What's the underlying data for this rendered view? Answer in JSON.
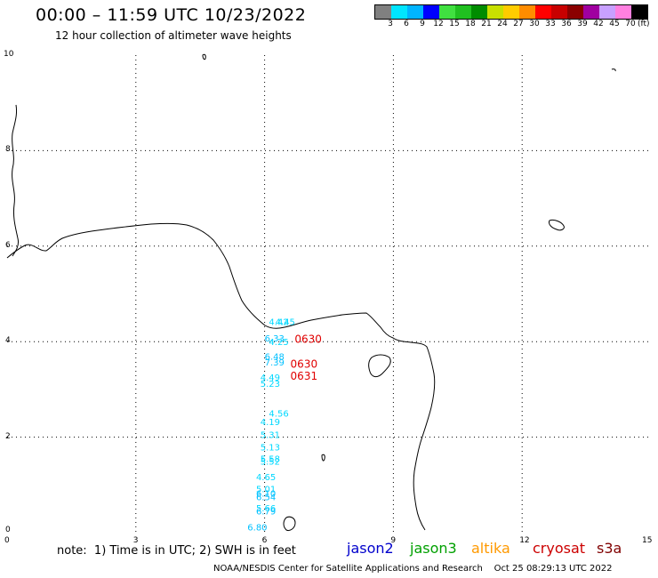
{
  "title": "00:00 – 11:59 UTC 10/23/2022",
  "subtitle": "12 hour collection of altimeter wave heights",
  "colorbar": {
    "swatches": [
      "#808080",
      "#00e5ff",
      "#00b4ff",
      "#0000ff",
      "#40e040",
      "#20c020",
      "#008c00",
      "#c8e000",
      "#ffcc00",
      "#ff8c00",
      "#ff0000",
      "#c80000",
      "#8b0000",
      "#a000a0",
      "#c8a0ff",
      "#ff80e0",
      "#000000"
    ],
    "labels": [
      "3",
      "6",
      "9",
      "12",
      "15",
      "18",
      "21",
      "24",
      "27",
      "30",
      "33",
      "36",
      "39",
      "42",
      "45",
      "70"
    ],
    "unit": "(ft)"
  },
  "axes": {
    "x_ticks": [
      "0",
      "3",
      "6",
      "9",
      "12",
      "15"
    ],
    "y_ticks": [
      "0",
      "2",
      "4",
      "6",
      "8",
      "10"
    ]
  },
  "track_labels": [
    {
      "text": "4.42",
      "color": "#00d8ff",
      "x": 6.1,
      "y": 4.35
    },
    {
      "text": "4.45",
      "color": "#00d8ff",
      "x": 6.25,
      "y": 4.35
    },
    {
      "text": "6.33",
      "color": "#00c0ff",
      "x": 6.0,
      "y": 4.0
    },
    {
      "text": "4.25",
      "color": "#00d8ff",
      "x": 6.1,
      "y": 3.93
    },
    {
      "text": "6.48",
      "color": "#00c0ff",
      "x": 6.0,
      "y": 3.62
    },
    {
      "text": "7.39",
      "color": "#00c0ff",
      "x": 6.0,
      "y": 3.5
    },
    {
      "text": "4.49",
      "color": "#00d8ff",
      "x": 5.9,
      "y": 3.18
    },
    {
      "text": "5.23",
      "color": "#00d8ff",
      "x": 5.9,
      "y": 3.05
    },
    {
      "text": "4.56",
      "color": "#00d8ff",
      "x": 6.1,
      "y": 2.43
    },
    {
      "text": "4.19",
      "color": "#00d8ff",
      "x": 5.9,
      "y": 2.25
    },
    {
      "text": "5.31",
      "color": "#00d8ff",
      "x": 5.9,
      "y": 1.98
    },
    {
      "text": "5.13",
      "color": "#00d8ff",
      "x": 5.9,
      "y": 1.72
    },
    {
      "text": "5.58",
      "color": "#00d8ff",
      "x": 5.9,
      "y": 1.48
    },
    {
      "text": "5.52",
      "color": "#00d8ff",
      "x": 5.9,
      "y": 1.42
    },
    {
      "text": "4.65",
      "color": "#00d8ff",
      "x": 5.8,
      "y": 1.1
    },
    {
      "text": "5.01",
      "color": "#00d8ff",
      "x": 5.8,
      "y": 0.85
    },
    {
      "text": "6.10",
      "color": "#00c0ff",
      "x": 5.8,
      "y": 0.75
    },
    {
      "text": "6.54",
      "color": "#00c0ff",
      "x": 5.8,
      "y": 0.68
    },
    {
      "text": "5.66",
      "color": "#00d8ff",
      "x": 5.8,
      "y": 0.45
    },
    {
      "text": "6.79",
      "color": "#00c0ff",
      "x": 5.8,
      "y": 0.38
    },
    {
      "text": "6.80",
      "color": "#00c0ff",
      "x": 5.6,
      "y": 0.05
    }
  ],
  "time_labels": [
    {
      "text": "0630",
      "color": "#e00000",
      "x": 6.7,
      "y": 3.98
    },
    {
      "text": "0630",
      "color": "#e00000",
      "x": 6.6,
      "y": 3.45
    },
    {
      "text": "0631",
      "color": "#e00000",
      "x": 6.6,
      "y": 3.2
    }
  ],
  "note": "note:  1) Time is in UTC; 2) SWH is in feet",
  "satellites": [
    {
      "name": "jason2",
      "color": "#0000cc"
    },
    {
      "name": "jason3",
      "color": "#00a000"
    },
    {
      "name": "altika",
      "color": "#ff9900"
    },
    {
      "name": "cryosat",
      "color": "#cc0000"
    },
    {
      "name": "s3a",
      "color": "#800000"
    }
  ],
  "credit": "NOAA/NESDIS Center for Satellite Applications and Research    Oct 25 08:29:13 UTC 2022"
}
